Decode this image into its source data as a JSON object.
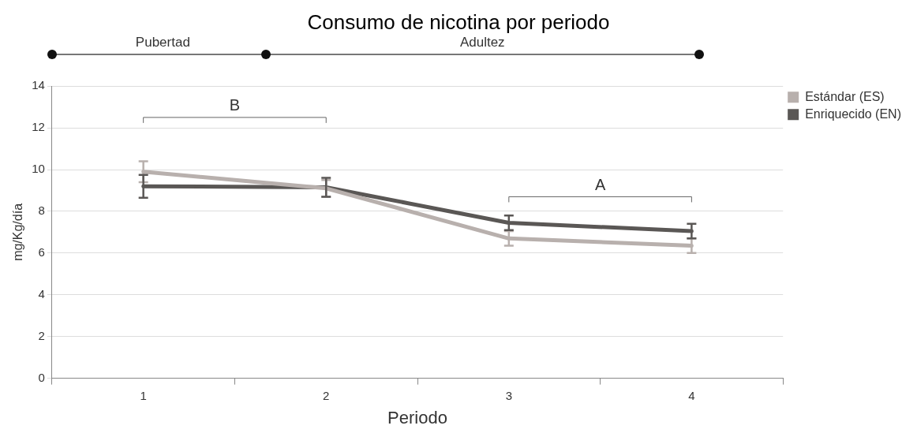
{
  "chart_data": {
    "type": "line",
    "title": "Consumo de nicotina por periodo",
    "xlabel": "Periodo",
    "ylabel": "mg/Kg/día",
    "categories": [
      "1",
      "2",
      "3",
      "4"
    ],
    "series": [
      {
        "name": "Estándar (ES)",
        "color": "#b8b0ad",
        "values": [
          9.9,
          9.1,
          6.7,
          6.35
        ],
        "errors": [
          0.5,
          0.4,
          0.35,
          0.35
        ]
      },
      {
        "name": "Enriquecido (EN)",
        "color": "#5a5755",
        "values": [
          9.2,
          9.15,
          7.45,
          7.05
        ],
        "errors": [
          0.55,
          0.45,
          0.35,
          0.35
        ]
      }
    ],
    "ylim": [
      0,
      14
    ],
    "yticks": [
      0,
      2,
      4,
      6,
      8,
      10,
      12,
      14
    ],
    "grid": "y",
    "legend": "top right",
    "line_style": "solid",
    "annotations": [
      "Pubertad",
      "Adultez",
      "B",
      "A"
    ]
  }
}
